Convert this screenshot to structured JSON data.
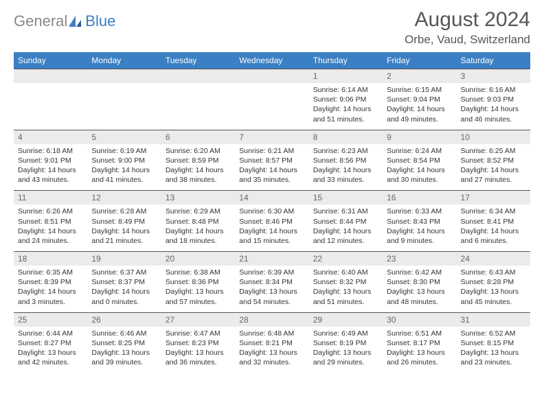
{
  "brand": {
    "word1": "General",
    "word2": "Blue"
  },
  "header": {
    "month_title": "August 2024",
    "location": "Orbe, Vaud, Switzerland"
  },
  "colors": {
    "header_bg": "#3b7fc4",
    "header_text": "#ffffff",
    "daynum_bg": "#eceaea",
    "daynum_text": "#666666",
    "body_text": "#333333",
    "rule": "#555555",
    "page_bg": "#ffffff",
    "logo_gray": "#888888",
    "logo_blue": "#3b7fc4"
  },
  "days_of_week": [
    "Sunday",
    "Monday",
    "Tuesday",
    "Wednesday",
    "Thursday",
    "Friday",
    "Saturday"
  ],
  "weeks": [
    [
      null,
      null,
      null,
      null,
      {
        "n": "1",
        "sunrise": "6:14 AM",
        "sunset": "9:06 PM",
        "daylight": "14 hours and 51 minutes."
      },
      {
        "n": "2",
        "sunrise": "6:15 AM",
        "sunset": "9:04 PM",
        "daylight": "14 hours and 49 minutes."
      },
      {
        "n": "3",
        "sunrise": "6:16 AM",
        "sunset": "9:03 PM",
        "daylight": "14 hours and 46 minutes."
      }
    ],
    [
      {
        "n": "4",
        "sunrise": "6:18 AM",
        "sunset": "9:01 PM",
        "daylight": "14 hours and 43 minutes."
      },
      {
        "n": "5",
        "sunrise": "6:19 AM",
        "sunset": "9:00 PM",
        "daylight": "14 hours and 41 minutes."
      },
      {
        "n": "6",
        "sunrise": "6:20 AM",
        "sunset": "8:59 PM",
        "daylight": "14 hours and 38 minutes."
      },
      {
        "n": "7",
        "sunrise": "6:21 AM",
        "sunset": "8:57 PM",
        "daylight": "14 hours and 35 minutes."
      },
      {
        "n": "8",
        "sunrise": "6:23 AM",
        "sunset": "8:56 PM",
        "daylight": "14 hours and 33 minutes."
      },
      {
        "n": "9",
        "sunrise": "6:24 AM",
        "sunset": "8:54 PM",
        "daylight": "14 hours and 30 minutes."
      },
      {
        "n": "10",
        "sunrise": "6:25 AM",
        "sunset": "8:52 PM",
        "daylight": "14 hours and 27 minutes."
      }
    ],
    [
      {
        "n": "11",
        "sunrise": "6:26 AM",
        "sunset": "8:51 PM",
        "daylight": "14 hours and 24 minutes."
      },
      {
        "n": "12",
        "sunrise": "6:28 AM",
        "sunset": "8:49 PM",
        "daylight": "14 hours and 21 minutes."
      },
      {
        "n": "13",
        "sunrise": "6:29 AM",
        "sunset": "8:48 PM",
        "daylight": "14 hours and 18 minutes."
      },
      {
        "n": "14",
        "sunrise": "6:30 AM",
        "sunset": "8:46 PM",
        "daylight": "14 hours and 15 minutes."
      },
      {
        "n": "15",
        "sunrise": "6:31 AM",
        "sunset": "8:44 PM",
        "daylight": "14 hours and 12 minutes."
      },
      {
        "n": "16",
        "sunrise": "6:33 AM",
        "sunset": "8:43 PM",
        "daylight": "14 hours and 9 minutes."
      },
      {
        "n": "17",
        "sunrise": "6:34 AM",
        "sunset": "8:41 PM",
        "daylight": "14 hours and 6 minutes."
      }
    ],
    [
      {
        "n": "18",
        "sunrise": "6:35 AM",
        "sunset": "8:39 PM",
        "daylight": "14 hours and 3 minutes."
      },
      {
        "n": "19",
        "sunrise": "6:37 AM",
        "sunset": "8:37 PM",
        "daylight": "14 hours and 0 minutes."
      },
      {
        "n": "20",
        "sunrise": "6:38 AM",
        "sunset": "8:36 PM",
        "daylight": "13 hours and 57 minutes."
      },
      {
        "n": "21",
        "sunrise": "6:39 AM",
        "sunset": "8:34 PM",
        "daylight": "13 hours and 54 minutes."
      },
      {
        "n": "22",
        "sunrise": "6:40 AM",
        "sunset": "8:32 PM",
        "daylight": "13 hours and 51 minutes."
      },
      {
        "n": "23",
        "sunrise": "6:42 AM",
        "sunset": "8:30 PM",
        "daylight": "13 hours and 48 minutes."
      },
      {
        "n": "24",
        "sunrise": "6:43 AM",
        "sunset": "8:28 PM",
        "daylight": "13 hours and 45 minutes."
      }
    ],
    [
      {
        "n": "25",
        "sunrise": "6:44 AM",
        "sunset": "8:27 PM",
        "daylight": "13 hours and 42 minutes."
      },
      {
        "n": "26",
        "sunrise": "6:46 AM",
        "sunset": "8:25 PM",
        "daylight": "13 hours and 39 minutes."
      },
      {
        "n": "27",
        "sunrise": "6:47 AM",
        "sunset": "8:23 PM",
        "daylight": "13 hours and 36 minutes."
      },
      {
        "n": "28",
        "sunrise": "6:48 AM",
        "sunset": "8:21 PM",
        "daylight": "13 hours and 32 minutes."
      },
      {
        "n": "29",
        "sunrise": "6:49 AM",
        "sunset": "8:19 PM",
        "daylight": "13 hours and 29 minutes."
      },
      {
        "n": "30",
        "sunrise": "6:51 AM",
        "sunset": "8:17 PM",
        "daylight": "13 hours and 26 minutes."
      },
      {
        "n": "31",
        "sunrise": "6:52 AM",
        "sunset": "8:15 PM",
        "daylight": "13 hours and 23 minutes."
      }
    ]
  ],
  "labels": {
    "sunrise": "Sunrise: ",
    "sunset": "Sunset: ",
    "daylight": "Daylight: "
  }
}
